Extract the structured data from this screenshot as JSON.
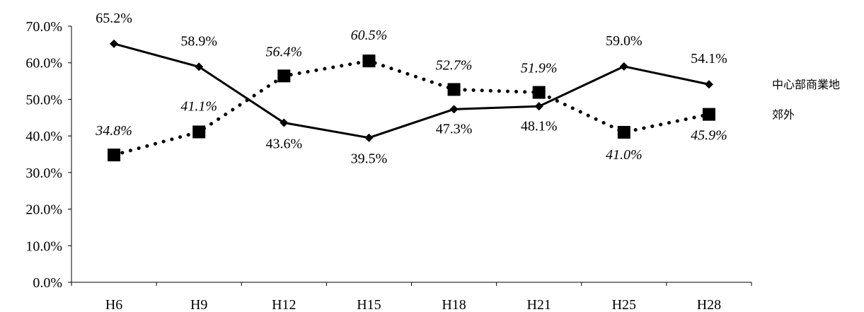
{
  "chart_data": {
    "type": "line",
    "categories": [
      "H6",
      "H9",
      "H12",
      "H15",
      "H18",
      "H21",
      "H25",
      "H28"
    ],
    "ylim": [
      0,
      70
    ],
    "yticks": [
      "0.0%",
      "10.0%",
      "20.0%",
      "30.0%",
      "40.0%",
      "50.0%",
      "60.0%",
      "70.0%"
    ],
    "grid": false,
    "series": [
      {
        "name": "中心部商業地",
        "values": [
          65.2,
          58.9,
          43.6,
          39.5,
          47.3,
          48.1,
          59.0,
          54.1
        ],
        "labels": [
          "65.2%",
          "58.9%",
          "43.6%",
          "39.5%",
          "47.3%",
          "48.1%",
          "59.0%",
          "54.1%"
        ],
        "line_style": "solid",
        "marker": "diamond",
        "label_style": "normal"
      },
      {
        "name": "郊外",
        "values": [
          34.8,
          41.1,
          56.4,
          60.5,
          52.7,
          51.9,
          41.0,
          45.9
        ],
        "labels": [
          "34.8%",
          "41.1%",
          "56.4%",
          "60.5%",
          "52.7%",
          "51.9%",
          "41.0%",
          "45.9%"
        ],
        "line_style": "dotted",
        "marker": "square",
        "label_style": "italic"
      }
    ],
    "colors": {
      "line": "#000000",
      "axis": "#000000"
    }
  }
}
